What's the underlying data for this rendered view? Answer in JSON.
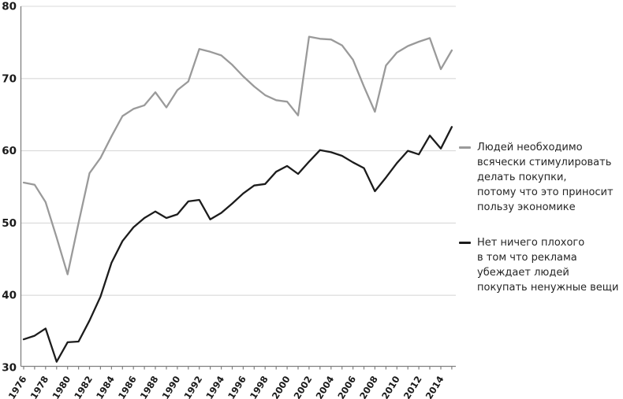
{
  "legend": {
    "items": [
      {
        "label": "Людей необходимо\nвсячески стимулировать\nделать покупки,\nпотому что это приносит\nпользу экономике",
        "color": "#9a9a9a"
      },
      {
        "label": "Нет ничего плохого\nв том что реклама\nубеждает людей\nпокупать ненужные вещи",
        "color": "#1c1c1c"
      }
    ]
  },
  "chart_data": {
    "type": "line",
    "title": "",
    "xlabel": "",
    "ylabel": "",
    "x": [
      1976,
      1977,
      1978,
      1979,
      1980,
      1981,
      1982,
      1983,
      1984,
      1985,
      1986,
      1987,
      1988,
      1989,
      1990,
      1991,
      1992,
      1993,
      1994,
      1995,
      1996,
      1997,
      1998,
      1999,
      2000,
      2001,
      2002,
      2003,
      2004,
      2005,
      2006,
      2007,
      2008,
      2009,
      2010,
      2011,
      2012,
      2013,
      2014,
      2015
    ],
    "series": [
      {
        "name": "Людей необходимо всячески стимулировать делать покупки, потому что это приносит пользу экономике",
        "color": "#9a9a9a",
        "values": [
          55.6,
          55.3,
          52.9,
          48.0,
          42.9,
          50.0,
          56.9,
          59.0,
          62.0,
          64.8,
          65.8,
          66.3,
          68.1,
          66.0,
          68.4,
          69.6,
          74.1,
          73.7,
          73.2,
          71.9,
          70.3,
          68.9,
          67.7,
          67.0,
          66.8,
          64.9,
          75.8,
          75.5,
          75.4,
          74.6,
          72.6,
          68.9,
          65.4,
          71.8,
          73.6,
          74.5,
          75.1,
          75.6,
          71.3,
          73.9
        ]
      },
      {
        "name": "Нет ничего плохого в том что реклама убеждает людей покупать ненужные вещи",
        "color": "#1c1c1c",
        "values": [
          33.9,
          34.4,
          35.4,
          30.8,
          33.5,
          33.6,
          36.5,
          39.8,
          44.5,
          47.5,
          49.4,
          50.7,
          51.6,
          50.7,
          51.2,
          53.0,
          53.2,
          50.5,
          51.4,
          52.7,
          54.1,
          55.2,
          55.4,
          57.1,
          57.9,
          56.8,
          58.5,
          60.1,
          59.8,
          59.3,
          58.4,
          57.6,
          54.4,
          56.3,
          58.3,
          60.0,
          59.5,
          62.1,
          60.3,
          63.3
        ]
      }
    ],
    "ylim": [
      30,
      80
    ],
    "yticks": [
      30,
      40,
      50,
      60,
      70,
      80
    ],
    "xticks": [
      1976,
      1978,
      1980,
      1982,
      1984,
      1986,
      1988,
      1990,
      1992,
      1994,
      1996,
      1998,
      2000,
      2002,
      2004,
      2006,
      2008,
      2010,
      2012,
      2014
    ],
    "grid": "horizontal",
    "legend_position": "right",
    "axis_color": "#808080",
    "grid_color": "#d9d9d9",
    "tick_label_color": "#1a1a1a"
  }
}
